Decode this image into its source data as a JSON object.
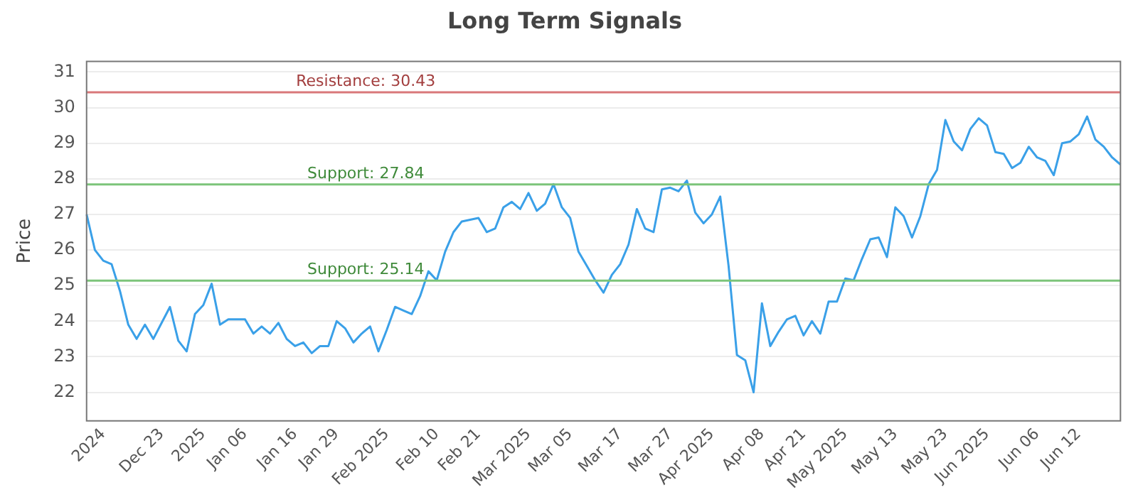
{
  "chart_data": {
    "type": "line",
    "title": "Long Term Signals",
    "ylabel": "Price",
    "categories": [
      null,
      null,
      "2024",
      null,
      null,
      null,
      null,
      null,
      null,
      "Dec 23",
      null,
      null,
      null,
      null,
      "2025",
      null,
      null,
      null,
      null,
      "Jan 06",
      null,
      null,
      null,
      null,
      null,
      "Jan 16",
      null,
      null,
      null,
      null,
      "Jan 29",
      null,
      null,
      null,
      null,
      null,
      "Feb 2025",
      null,
      null,
      null,
      null,
      null,
      "Feb 10",
      null,
      null,
      null,
      null,
      "Feb 21",
      null,
      null,
      null,
      null,
      null,
      "Mar 2025",
      null,
      null,
      null,
      null,
      "Mar 05",
      null,
      null,
      null,
      null,
      null,
      "Mar 17",
      null,
      null,
      null,
      null,
      null,
      "Mar 27",
      null,
      null,
      null,
      null,
      "Apr 2025",
      null,
      null,
      null,
      null,
      null,
      "Apr 08",
      null,
      null,
      null,
      null,
      "Apr 21",
      null,
      null,
      null,
      null,
      "May 2025",
      null,
      null,
      null,
      null,
      null,
      "May 13",
      null,
      null,
      null,
      null,
      null,
      "May 23",
      null,
      null,
      null,
      null,
      "Jun 2025",
      null,
      null,
      null,
      null,
      null,
      "Jun 06",
      null,
      null,
      null,
      null,
      "Jun 12",
      null,
      null,
      null,
      null,
      null
    ],
    "series": [
      {
        "color": "#3aa0e8",
        "values": [
          27.0,
          26.0,
          25.7,
          25.6,
          24.85,
          23.9,
          23.5,
          23.9,
          23.5,
          23.95,
          24.4,
          23.45,
          23.15,
          24.2,
          24.45,
          25.05,
          23.9,
          24.05,
          24.05,
          24.05,
          23.65,
          23.85,
          23.65,
          23.95,
          23.5,
          23.3,
          23.4,
          23.1,
          23.3,
          23.3,
          24.0,
          23.8,
          23.4,
          23.65,
          23.85,
          23.15,
          23.75,
          24.4,
          24.3,
          24.2,
          24.7,
          25.4,
          25.15,
          25.95,
          26.5,
          26.8,
          26.85,
          26.9,
          26.5,
          26.6,
          27.2,
          27.35,
          27.15,
          27.6,
          27.1,
          27.3,
          27.85,
          27.2,
          26.9,
          25.95,
          25.55,
          25.15,
          24.8,
          25.3,
          25.6,
          26.15,
          27.15,
          26.6,
          26.5,
          27.7,
          27.75,
          27.65,
          27.95,
          27.05,
          26.75,
          27.0,
          27.5,
          25.55,
          23.05,
          22.9,
          22.0,
          24.5,
          23.3,
          23.7,
          24.05,
          24.15,
          23.6,
          24.0,
          23.65,
          24.55,
          24.55,
          25.2,
          25.15,
          25.75,
          26.3,
          26.35,
          25.8,
          27.2,
          26.95,
          26.35,
          26.95,
          27.85,
          28.25,
          29.65,
          29.05,
          28.8,
          29.4,
          29.7,
          29.5,
          28.75,
          28.7,
          28.3,
          28.45,
          28.9,
          28.6,
          28.5,
          28.1,
          29.0,
          29.05,
          29.25,
          29.75,
          29.1,
          28.9,
          28.6,
          28.4
        ]
      }
    ],
    "ylim": [
      21.2,
      31.3
    ],
    "yticks": [
      22,
      23,
      24,
      25,
      26,
      27,
      28,
      29,
      30,
      31
    ],
    "ref_lines": [
      {
        "axis": "y",
        "value": 30.43,
        "label": "Resistance: 30.43",
        "color": "#d9787a"
      },
      {
        "axis": "y",
        "value": 27.84,
        "label": "Support: 27.84",
        "color": "#7cc47a"
      },
      {
        "axis": "y",
        "value": 25.14,
        "label": "Support: 25.14",
        "color": "#7cc47a"
      }
    ],
    "grid": "y",
    "legend": false,
    "marker": "none",
    "line_style": "solid"
  }
}
